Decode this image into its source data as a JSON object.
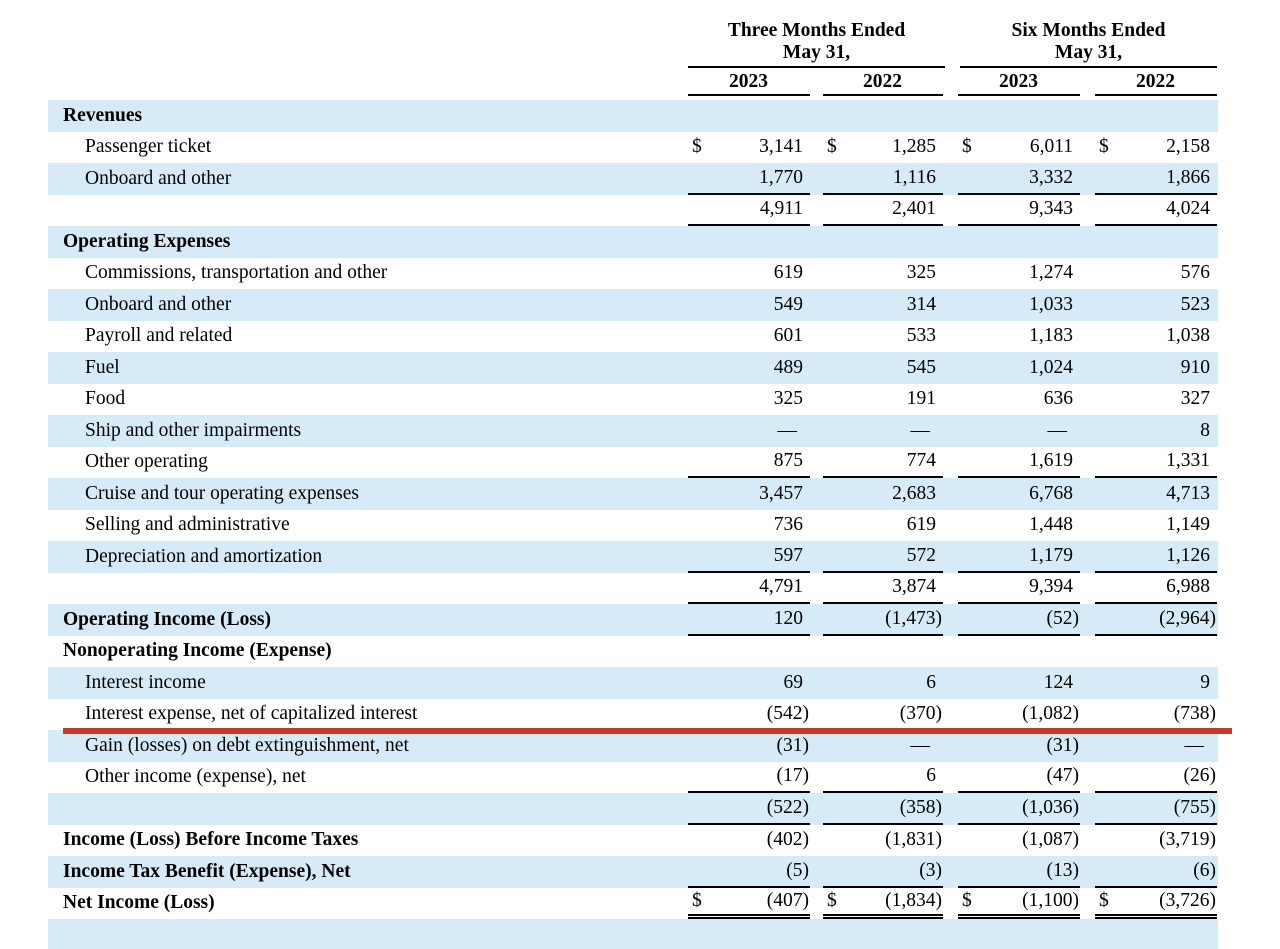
{
  "table": {
    "currency_symbol": "$",
    "colors": {
      "row_stripe": "#d6eaf8",
      "annotation_red": "#c43b28",
      "text": "#000000"
    },
    "col_groups": [
      {
        "title_line1": "Three Months Ended",
        "title_line2": "May 31,",
        "years": [
          "2023",
          "2022"
        ]
      },
      {
        "title_line1": "Six Months Ended",
        "title_line2": "May 31,",
        "years": [
          "2023",
          "2022"
        ]
      }
    ],
    "annotation": {
      "type": "red-underline",
      "on_row": "Interest expense, net of capitalized interest"
    },
    "rows": [
      {
        "label": "Revenues",
        "type": "section",
        "shaded": true,
        "dollar": false,
        "rule": "none",
        "red_line": false,
        "values": null
      },
      {
        "label": "Passenger ticket",
        "type": "item",
        "shaded": false,
        "dollar": true,
        "rule": "none",
        "red_line": false,
        "values": [
          "3,141",
          "1,285",
          "6,011",
          "2,158"
        ]
      },
      {
        "label": "Onboard and other",
        "type": "item",
        "shaded": true,
        "dollar": false,
        "rule": "single",
        "red_line": false,
        "values": [
          "1,770",
          "1,116",
          "3,332",
          "1,866"
        ]
      },
      {
        "label": "",
        "type": "subtotal",
        "shaded": false,
        "dollar": false,
        "rule": "single",
        "red_line": false,
        "values": [
          "4,911",
          "2,401",
          "9,343",
          "4,024"
        ]
      },
      {
        "label": "Operating Expenses",
        "type": "section",
        "shaded": true,
        "dollar": false,
        "rule": "none",
        "red_line": false,
        "values": null
      },
      {
        "label": "Commissions, transportation and other",
        "type": "item",
        "shaded": false,
        "dollar": false,
        "rule": "none",
        "red_line": false,
        "values": [
          "619",
          "325",
          "1,274",
          "576"
        ]
      },
      {
        "label": "Onboard and other",
        "type": "item",
        "shaded": true,
        "dollar": false,
        "rule": "none",
        "red_line": false,
        "values": [
          "549",
          "314",
          "1,033",
          "523"
        ]
      },
      {
        "label": "Payroll and related",
        "type": "item",
        "shaded": false,
        "dollar": false,
        "rule": "none",
        "red_line": false,
        "values": [
          "601",
          "533",
          "1,183",
          "1,038"
        ]
      },
      {
        "label": "Fuel",
        "type": "item",
        "shaded": true,
        "dollar": false,
        "rule": "none",
        "red_line": false,
        "values": [
          "489",
          "545",
          "1,024",
          "910"
        ]
      },
      {
        "label": "Food",
        "type": "item",
        "shaded": false,
        "dollar": false,
        "rule": "none",
        "red_line": false,
        "values": [
          "325",
          "191",
          "636",
          "327"
        ]
      },
      {
        "label": "Ship and other impairments",
        "type": "item",
        "shaded": true,
        "dollar": false,
        "rule": "none",
        "red_line": false,
        "values": [
          "—",
          "—",
          "—",
          "8"
        ]
      },
      {
        "label": "Other operating",
        "type": "item",
        "shaded": false,
        "dollar": false,
        "rule": "single",
        "red_line": false,
        "values": [
          "875",
          "774",
          "1,619",
          "1,331"
        ]
      },
      {
        "label": "Cruise and tour operating expenses",
        "type": "item",
        "shaded": true,
        "dollar": false,
        "rule": "none",
        "red_line": false,
        "values": [
          "3,457",
          "2,683",
          "6,768",
          "4,713"
        ]
      },
      {
        "label": "Selling and administrative",
        "type": "item",
        "shaded": false,
        "dollar": false,
        "rule": "none",
        "red_line": false,
        "values": [
          "736",
          "619",
          "1,448",
          "1,149"
        ]
      },
      {
        "label": "Depreciation and amortization",
        "type": "item",
        "shaded": true,
        "dollar": false,
        "rule": "single",
        "red_line": false,
        "values": [
          "597",
          "572",
          "1,179",
          "1,126"
        ]
      },
      {
        "label": "",
        "type": "subtotal",
        "shaded": false,
        "dollar": false,
        "rule": "single",
        "red_line": false,
        "values": [
          "4,791",
          "3,874",
          "9,394",
          "6,988"
        ]
      },
      {
        "label": "Operating Income (Loss)",
        "type": "section",
        "shaded": true,
        "dollar": false,
        "rule": "single",
        "red_line": false,
        "values": [
          "120",
          "(1,473)",
          "(52)",
          "(2,964)"
        ]
      },
      {
        "label": "Nonoperating Income (Expense)",
        "type": "section",
        "shaded": false,
        "dollar": false,
        "rule": "none",
        "red_line": false,
        "values": null
      },
      {
        "label": "Interest income",
        "type": "item",
        "shaded": true,
        "dollar": false,
        "rule": "none",
        "red_line": false,
        "values": [
          "69",
          "6",
          "124",
          "9"
        ]
      },
      {
        "label": "Interest expense, net of capitalized interest",
        "type": "item",
        "shaded": false,
        "dollar": false,
        "rule": "none",
        "red_line": true,
        "values": [
          "(542)",
          "(370)",
          "(1,082)",
          "(738)"
        ]
      },
      {
        "label": "Gain (losses) on debt extinguishment, net",
        "type": "item",
        "shaded": true,
        "dollar": false,
        "rule": "none",
        "red_line": false,
        "values": [
          "(31)",
          "—",
          "(31)",
          "—"
        ]
      },
      {
        "label": "Other income (expense), net",
        "type": "item",
        "shaded": false,
        "dollar": false,
        "rule": "single",
        "red_line": false,
        "values": [
          "(17)",
          "6",
          "(47)",
          "(26)"
        ]
      },
      {
        "label": "",
        "type": "subtotal",
        "shaded": true,
        "dollar": false,
        "rule": "single",
        "red_line": false,
        "values": [
          "(522)",
          "(358)",
          "(1,036)",
          "(755)"
        ]
      },
      {
        "label": "Income (Loss) Before Income Taxes",
        "type": "section",
        "shaded": false,
        "dollar": false,
        "rule": "none",
        "red_line": false,
        "values": [
          "(402)",
          "(1,831)",
          "(1,087)",
          "(3,719)"
        ]
      },
      {
        "label": "Income Tax Benefit (Expense), Net",
        "type": "section",
        "shaded": true,
        "dollar": false,
        "rule": "single",
        "red_line": false,
        "values": [
          "(5)",
          "(3)",
          "(13)",
          "(6)"
        ]
      },
      {
        "label": "Net Income (Loss)",
        "type": "section",
        "shaded": false,
        "dollar": true,
        "rule": "double",
        "red_line": false,
        "values": [
          "(407)",
          "(1,834)",
          "(1,100)",
          "(3,726)"
        ]
      },
      {
        "label": "",
        "type": "blank",
        "shaded": true,
        "dollar": false,
        "rule": "none",
        "red_line": false,
        "values": null
      }
    ]
  }
}
